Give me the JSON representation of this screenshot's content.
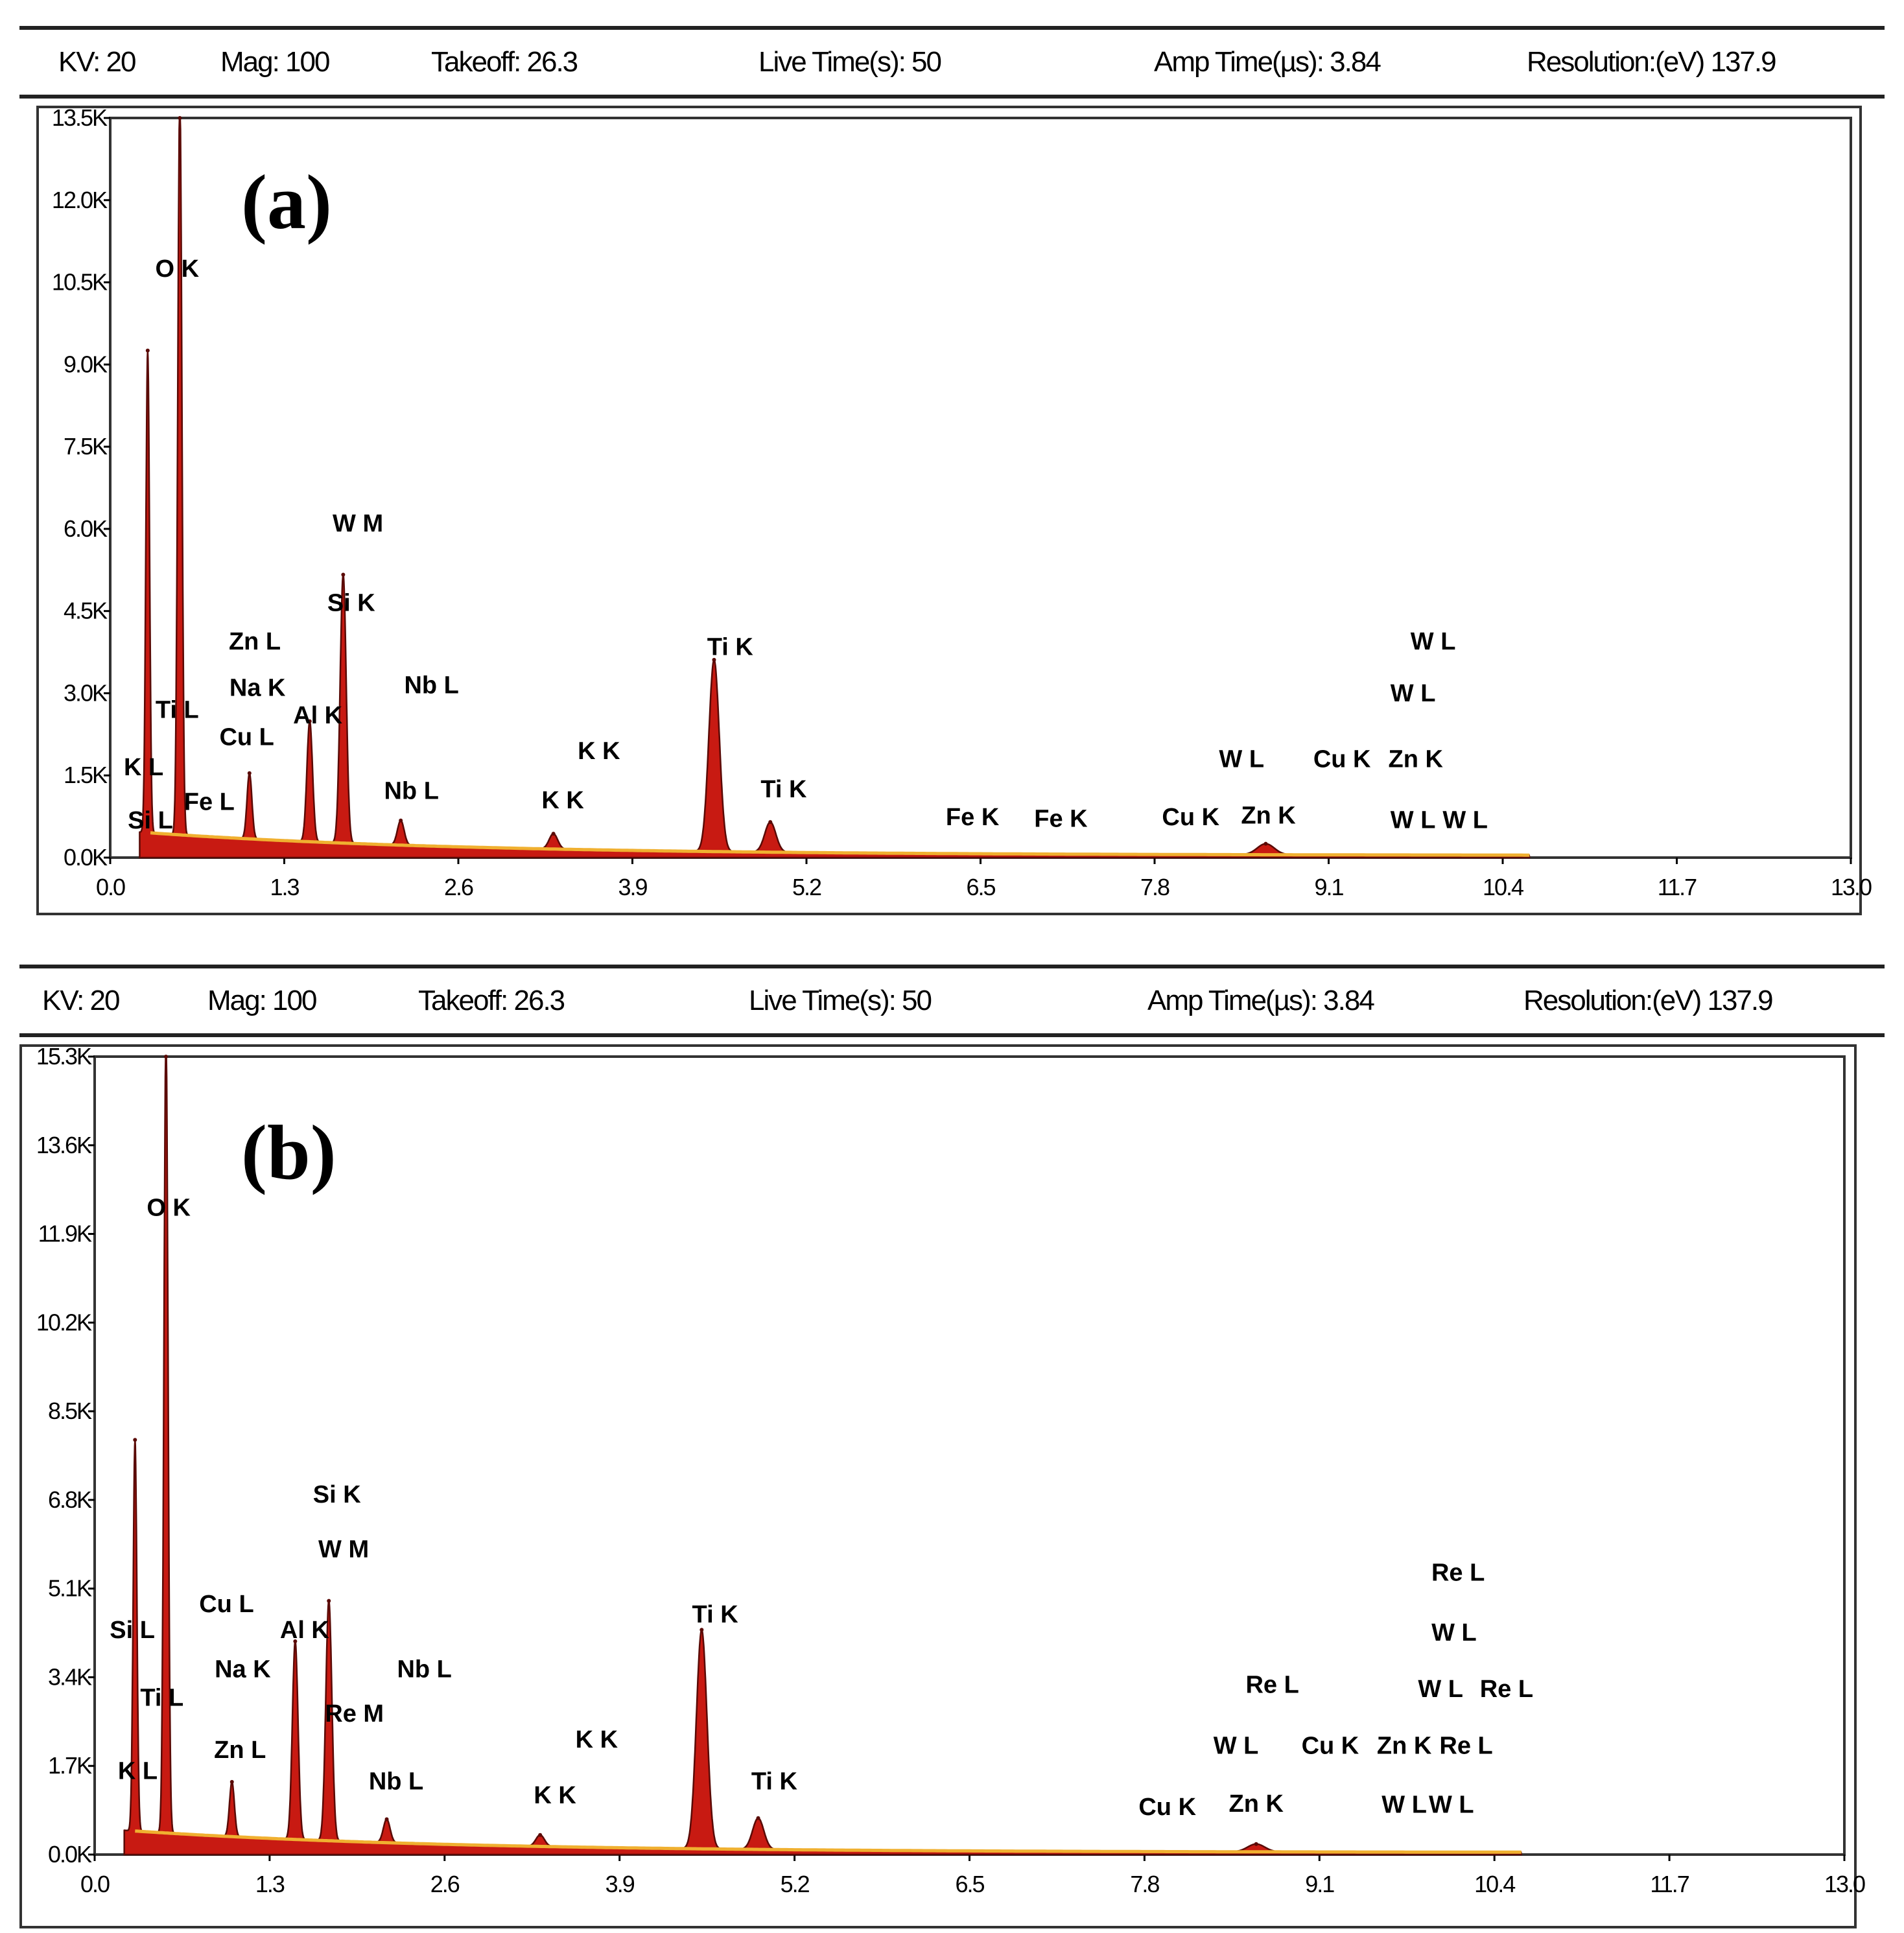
{
  "chart_data": [
    {
      "type": "line",
      "panel_label": "(a)",
      "header": {
        "kv": "KV: 20",
        "mag": "Mag: 100",
        "takeoff": "Takeoff: 26.3",
        "live_time": "Live Time(s): 50",
        "amp_time": "Amp Time(µs): 3.84",
        "resolution": "Resolution:(eV) 137.9"
      },
      "xlim": [
        0,
        13
      ],
      "ylim": [
        0,
        13500
      ],
      "x_ticks": [
        "0.0",
        "1.3",
        "2.6",
        "3.9",
        "5.2",
        "6.5",
        "7.8",
        "9.1",
        "10.4",
        "11.7",
        "13.0"
      ],
      "y_ticks": [
        "0.0K",
        "1.5K",
        "3.0K",
        "4.5K",
        "6.0K",
        "7.5K",
        "9.0K",
        "10.5K",
        "12.0K",
        "13.5K"
      ],
      "colors": {
        "fill": "#c81a12",
        "outline": "#5a0a06",
        "baseline": "#f0b030"
      },
      "peaks": [
        {
          "energy": 0.28,
          "counts": 8800
        },
        {
          "energy": 0.52,
          "counts": 13600
        },
        {
          "energy": 1.04,
          "counts": 1200
        },
        {
          "energy": 1.49,
          "counts": 2200
        },
        {
          "energy": 1.74,
          "counts": 4900
        },
        {
          "energy": 2.17,
          "counts": 450
        },
        {
          "energy": 3.31,
          "counts": 280
        },
        {
          "energy": 4.51,
          "counts": 3500
        },
        {
          "energy": 4.93,
          "counts": 550
        },
        {
          "energy": 8.63,
          "counts": 200
        }
      ],
      "annotations": [
        {
          "text": "O K",
          "energy": 0.5,
          "counts": 10600
        },
        {
          "text": "W M",
          "energy": 1.85,
          "counts": 5950
        },
        {
          "text": "Si K",
          "energy": 1.8,
          "counts": 4500
        },
        {
          "text": "Zn L",
          "energy": 1.08,
          "counts": 3800
        },
        {
          "text": "Na K",
          "energy": 1.1,
          "counts": 2950
        },
        {
          "text": "Nb L",
          "energy": 2.4,
          "counts": 3000
        },
        {
          "text": "Ti L",
          "energy": 0.5,
          "counts": 2550
        },
        {
          "text": "Cu L",
          "energy": 1.02,
          "counts": 2050
        },
        {
          "text": "Al K",
          "energy": 1.55,
          "counts": 2450
        },
        {
          "text": "K L",
          "energy": 0.25,
          "counts": 1500
        },
        {
          "text": "Fe L",
          "energy": 0.74,
          "counts": 870
        },
        {
          "text": "Si L",
          "energy": 0.3,
          "counts": 530
        },
        {
          "text": "Nb L",
          "energy": 2.25,
          "counts": 1070
        },
        {
          "text": "K K",
          "energy": 3.65,
          "counts": 1800
        },
        {
          "text": "K K",
          "energy": 3.38,
          "counts": 900
        },
        {
          "text": "Ti K",
          "energy": 4.63,
          "counts": 3700
        },
        {
          "text": "Ti K",
          "energy": 5.03,
          "counts": 1100
        },
        {
          "text": "Fe K",
          "energy": 6.44,
          "counts": 590
        },
        {
          "text": "Fe K",
          "energy": 7.1,
          "counts": 560
        },
        {
          "text": "Cu K",
          "energy": 8.07,
          "counts": 590
        },
        {
          "text": "Zn K",
          "energy": 8.65,
          "counts": 620
        },
        {
          "text": "W L",
          "energy": 8.45,
          "counts": 1650
        },
        {
          "text": "Cu K",
          "energy": 9.2,
          "counts": 1650
        },
        {
          "text": "Zn K",
          "energy": 9.75,
          "counts": 1650
        },
        {
          "text": "W L",
          "energy": 9.88,
          "counts": 3800
        },
        {
          "text": "W L",
          "energy": 9.73,
          "counts": 2850
        },
        {
          "text": "W L",
          "energy": 9.73,
          "counts": 540
        },
        {
          "text": "W L",
          "energy": 10.12,
          "counts": 540
        }
      ]
    },
    {
      "type": "line",
      "panel_label": "(b)",
      "header": {
        "kv": "KV: 20",
        "mag": "Mag: 100",
        "takeoff": "Takeoff: 26.3",
        "live_time": "Live Time(s): 50",
        "amp_time": "Amp Time(µs): 3.84",
        "resolution": "Resolution:(eV) 137.9"
      },
      "xlim": [
        0,
        13
      ],
      "ylim": [
        0,
        15300
      ],
      "x_ticks": [
        "0.0",
        "1.3",
        "2.6",
        "3.9",
        "5.2",
        "6.5",
        "7.8",
        "9.1",
        "10.4",
        "11.7",
        "13.0"
      ],
      "y_ticks": [
        "0.0K",
        "1.7K",
        "3.4K",
        "5.1K",
        "6.8K",
        "8.5K",
        "10.2K",
        "11.9K",
        "13.6K",
        "15.3K"
      ],
      "colors": {
        "fill": "#c81a12",
        "outline": "#5a0a06",
        "baseline": "#f0b030"
      },
      "peaks": [
        {
          "energy": 0.3,
          "counts": 7500
        },
        {
          "energy": 0.53,
          "counts": 15300
        },
        {
          "energy": 1.02,
          "counts": 1050
        },
        {
          "energy": 1.49,
          "counts": 3800
        },
        {
          "energy": 1.74,
          "counts": 4600
        },
        {
          "energy": 2.17,
          "counts": 450
        },
        {
          "energy": 3.31,
          "counts": 220
        },
        {
          "energy": 4.51,
          "counts": 4200
        },
        {
          "energy": 4.93,
          "counts": 600
        },
        {
          "energy": 8.63,
          "counts": 150
        }
      ],
      "annotations": [
        {
          "text": "O K",
          "energy": 0.55,
          "counts": 12250
        },
        {
          "text": "Si K",
          "energy": 1.8,
          "counts": 6750
        },
        {
          "text": "W M",
          "energy": 1.85,
          "counts": 5700
        },
        {
          "text": "Cu L",
          "energy": 0.98,
          "counts": 4650
        },
        {
          "text": "Si L",
          "energy": 0.28,
          "counts": 4150
        },
        {
          "text": "Al K",
          "energy": 1.56,
          "counts": 4150
        },
        {
          "text": "Na K",
          "energy": 1.1,
          "counts": 3400
        },
        {
          "text": "Nb L",
          "energy": 2.45,
          "counts": 3400
        },
        {
          "text": "Ti L",
          "energy": 0.5,
          "counts": 2850
        },
        {
          "text": "Re M",
          "energy": 1.93,
          "counts": 2550
        },
        {
          "text": "Zn L",
          "energy": 1.08,
          "counts": 1850
        },
        {
          "text": "K L",
          "energy": 0.32,
          "counts": 1450
        },
        {
          "text": "Nb L",
          "energy": 2.24,
          "counts": 1250
        },
        {
          "text": "K K",
          "energy": 3.73,
          "counts": 2050
        },
        {
          "text": "K K",
          "energy": 3.42,
          "counts": 980
        },
        {
          "text": "Ti K",
          "energy": 4.61,
          "counts": 4450
        },
        {
          "text": "Ti K",
          "energy": 5.05,
          "counts": 1250
        },
        {
          "text": "Cu K",
          "energy": 7.97,
          "counts": 760
        },
        {
          "text": "Zn K",
          "energy": 8.63,
          "counts": 820
        },
        {
          "text": "Re L",
          "energy": 8.75,
          "counts": 3100
        },
        {
          "text": "W L",
          "energy": 8.48,
          "counts": 1930
        },
        {
          "text": "Cu K",
          "energy": 9.18,
          "counts": 1930
        },
        {
          "text": "Zn K",
          "energy": 9.73,
          "counts": 1930
        },
        {
          "text": "Re L",
          "energy": 10.19,
          "counts": 1930
        },
        {
          "text": "Re L",
          "energy": 10.13,
          "counts": 5250
        },
        {
          "text": "W L",
          "energy": 10.1,
          "counts": 4100
        },
        {
          "text": "W L",
          "energy": 10.0,
          "counts": 3020
        },
        {
          "text": "Re L",
          "energy": 10.49,
          "counts": 3020
        },
        {
          "text": "W L",
          "energy": 9.73,
          "counts": 800
        },
        {
          "text": "W L",
          "energy": 10.08,
          "counts": 800
        }
      ]
    }
  ]
}
